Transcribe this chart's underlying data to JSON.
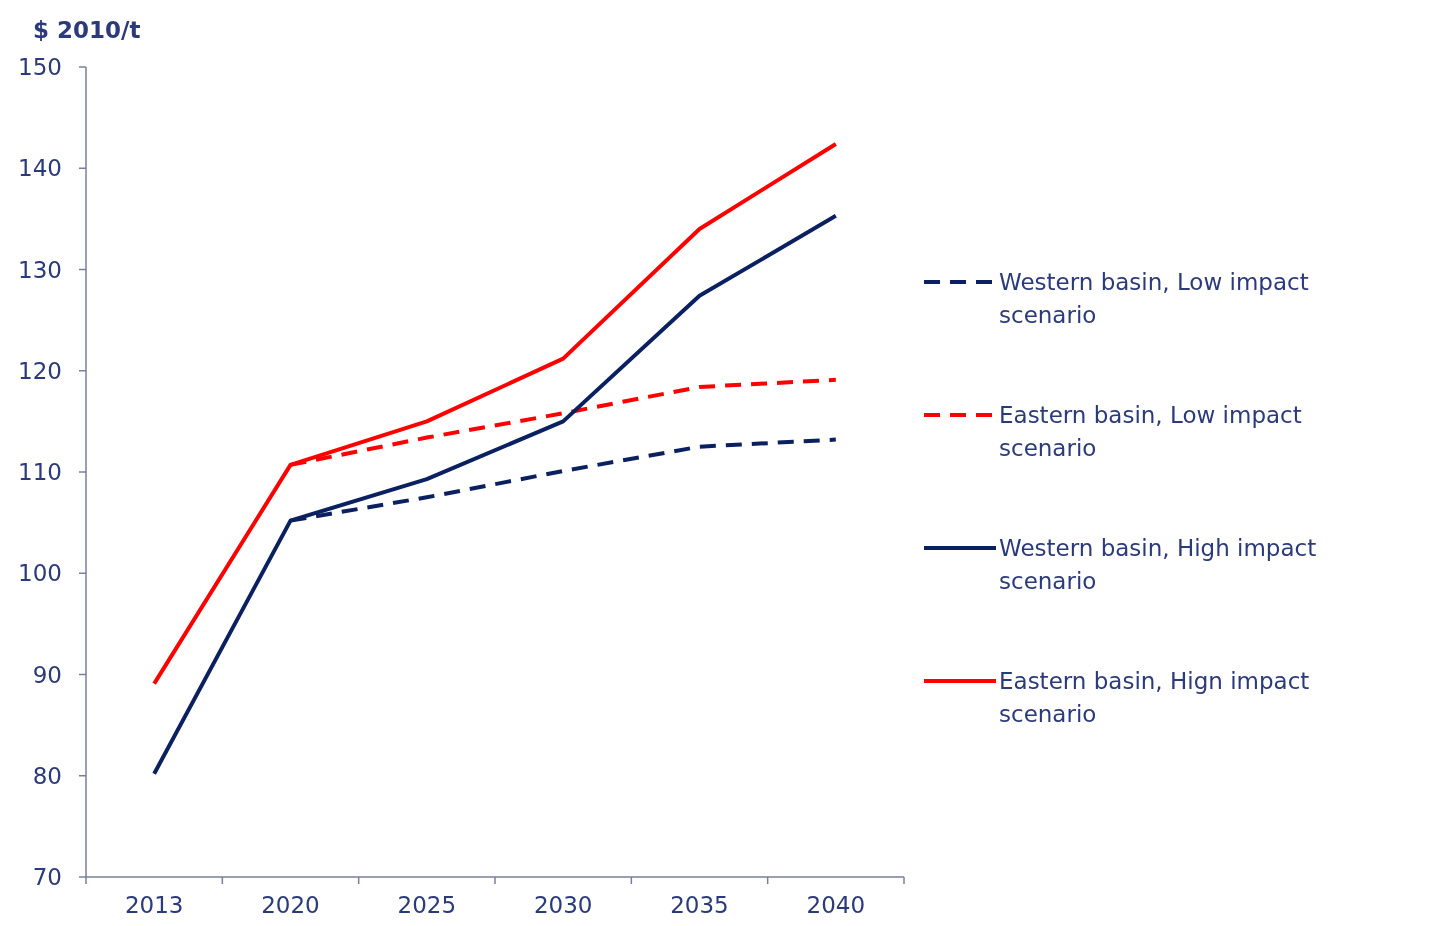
{
  "chart_data": {
    "type": "line",
    "ylabel": "$ 2010/t",
    "categories": [
      "2013",
      "2020",
      "2025",
      "2030",
      "2035",
      "2040"
    ],
    "ylim": [
      70,
      150
    ],
    "yticks": [
      70,
      80,
      90,
      100,
      110,
      120,
      130,
      140,
      150
    ],
    "legend": "right",
    "marker": "none",
    "series": [
      {
        "name": "Western basin, Low impact scenario",
        "color": "#0a2060",
        "line_style": "dashed",
        "values": [
          null,
          105.2,
          107.5,
          110.1,
          112.5,
          113.2
        ]
      },
      {
        "name": "Eastern basin, Low impact scenario",
        "color": "#ff0000",
        "line_style": "dashed",
        "values": [
          null,
          110.7,
          113.4,
          115.8,
          118.4,
          119.1
        ]
      },
      {
        "name": "Western basin, High impact scenario",
        "color": "#0a2060",
        "line_style": "solid",
        "values": [
          80.2,
          105.2,
          109.3,
          115.0,
          127.4,
          135.3
        ]
      },
      {
        "name": "Eastern basin, Hign impact scenario",
        "color": "#ff0000",
        "line_style": "solid",
        "values": [
          89.1,
          110.7,
          115.0,
          121.2,
          134.0,
          142.4
        ]
      }
    ]
  }
}
